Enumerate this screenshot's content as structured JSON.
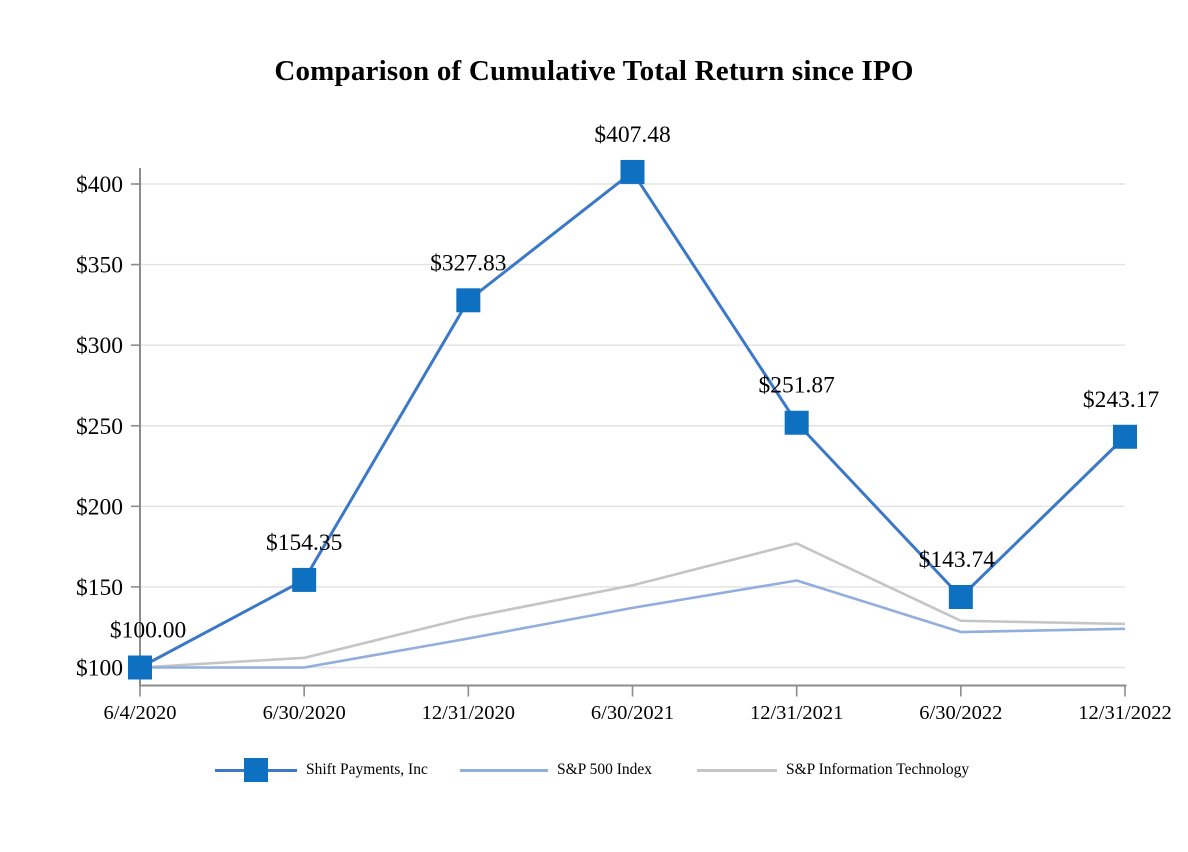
{
  "title": "Comparison of Cumulative Total Return since IPO",
  "colors": {
    "grid": "#e2e2e2",
    "axis": "#8c8c8c",
    "shift_line": "#3c78c8",
    "shift_marker": "#0e70c0",
    "sp500_line": "#92aedc",
    "spit_line": "#c5c5c5",
    "text": "#000000"
  },
  "chart_data": {
    "type": "line",
    "title": "Comparison of Cumulative Total Return since IPO",
    "x_categories": [
      "6/4/2020",
      "6/30/2020",
      "12/31/2020",
      "6/30/2021",
      "12/31/2021",
      "6/30/2022",
      "12/31/2022"
    ],
    "y_axis": {
      "prefix": "$",
      "ticks": [
        100,
        150,
        200,
        250,
        300,
        350,
        400
      ],
      "min": 100,
      "max": 400,
      "grid": true
    },
    "series": [
      {
        "name": "Shift Payments, Inc",
        "color": "#3c78c8",
        "marker": "square",
        "marker_color": "#0e70c0",
        "values": [
          100.0,
          154.35,
          327.83,
          407.48,
          251.87,
          143.74,
          243.17
        ],
        "data_labels": [
          "$100.00",
          "$154.35",
          "$327.83",
          "$407.48",
          "$251.87",
          "$143.74",
          "$243.17"
        ]
      },
      {
        "name": "S&P 500 Index",
        "color": "#92aedc",
        "marker": "none",
        "values": [
          100,
          100,
          118,
          137,
          154,
          122,
          124
        ]
      },
      {
        "name": "S&P Information Technology",
        "color": "#c5c5c5",
        "marker": "none",
        "values": [
          100,
          106,
          131,
          151,
          177,
          129,
          127
        ]
      }
    ],
    "legend_position": "bottom"
  }
}
